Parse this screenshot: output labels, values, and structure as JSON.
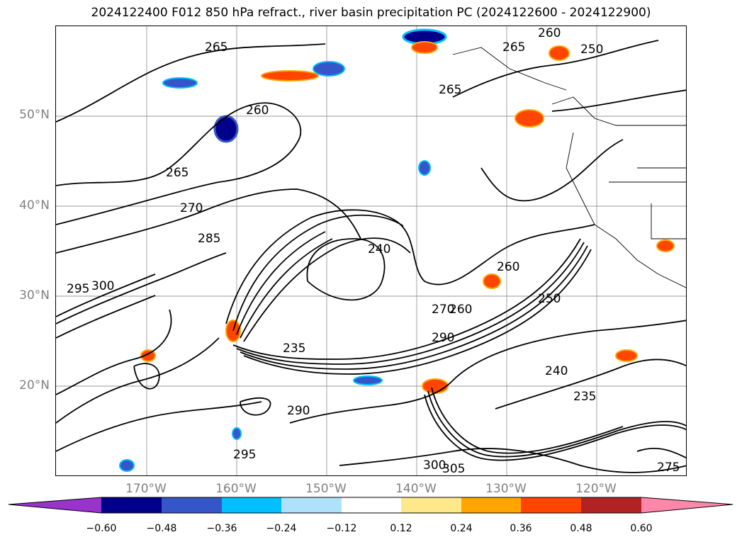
{
  "title": "2024122400 F012 850 hPa refract., river basin precipitation PC (2024122600 - 2024122900)",
  "map": {
    "lat_labels": [
      "50°N",
      "40°N",
      "30°N",
      "20°N"
    ],
    "lon_labels": [
      "170°W",
      "160°W",
      "150°W",
      "140°W",
      "130°W",
      "120°W"
    ],
    "contour_labels": [
      "265",
      "260",
      "250",
      "265",
      "265",
      "260",
      "265",
      "270",
      "285",
      "240",
      "235",
      "260",
      "250",
      "290",
      "300",
      "295",
      "290",
      "295",
      "305",
      "300",
      "240",
      "235",
      "275",
      "270",
      "260"
    ]
  },
  "colorbar": {
    "tick_labels": [
      "−0.60",
      "−0.48",
      "−0.36",
      "−0.24",
      "−0.12",
      "0.12",
      "0.24",
      "0.36",
      "0.48",
      "0.60"
    ],
    "colors": [
      "#9a33cc",
      "#00008b",
      "#3456c8",
      "#00bfff",
      "#aee2fb",
      "#ffffff",
      "#ffe88a",
      "#ffa500",
      "#ff4500",
      "#b22222",
      "#ff88aa"
    ]
  }
}
